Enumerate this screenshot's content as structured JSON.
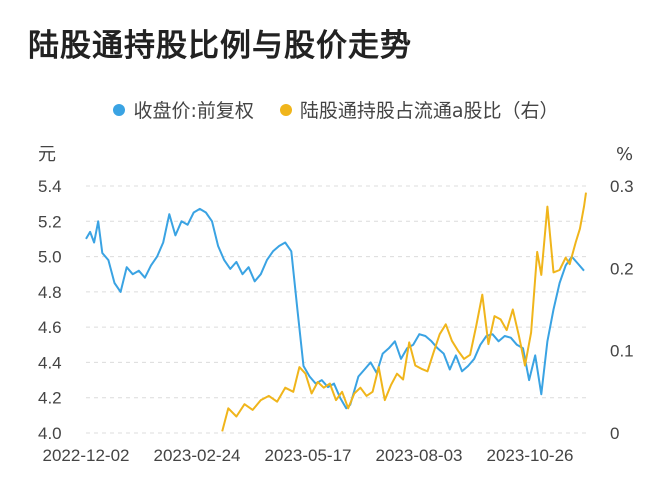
{
  "title": "陆股通持股比例与股价走势",
  "colors": {
    "price": "#3aa3e3",
    "holding": "#f0b51b",
    "grid": "#dcdcdc"
  },
  "chart_data": {
    "type": "line",
    "title": "陆股通持股比例与股价走势",
    "left_unit": "元",
    "right_unit": "%",
    "left_ylim": [
      4.0,
      5.4
    ],
    "right_ylim": [
      0,
      0.3
    ],
    "left_ticks": [
      "4.0",
      "4.2",
      "4.4",
      "4.6",
      "4.8",
      "5.0",
      "5.2",
      "5.4"
    ],
    "right_ticks": [
      "0",
      "0.1",
      "0.2",
      "0.3"
    ],
    "x_ticks": [
      "2022-12-02",
      "2023-02-24",
      "2023-05-17",
      "2023-08-03",
      "2023-10-26"
    ],
    "x_range": [
      0,
      246
    ],
    "series": [
      {
        "name": "收盘价:前复权",
        "axis": "left",
        "x": [
          0,
          2,
          4,
          6,
          8,
          11,
          14,
          17,
          20,
          23,
          26,
          29,
          32,
          35,
          38,
          41,
          44,
          47,
          50,
          53,
          56,
          59,
          62,
          65,
          68,
          71,
          74,
          77,
          80,
          83,
          86,
          89,
          92,
          95,
          98,
          101,
          104,
          107,
          110,
          113,
          116,
          119,
          122,
          125,
          128,
          130,
          131,
          134,
          137,
          140,
          143,
          146,
          149,
          152,
          155,
          158,
          161,
          164,
          167,
          170,
          173,
          176,
          179,
          182,
          185,
          188,
          191,
          194,
          197,
          200,
          203,
          206,
          209,
          212,
          215,
          218,
          221,
          224,
          227,
          230,
          233,
          236,
          239,
          242,
          245
        ],
        "values": [
          5.1,
          5.14,
          5.08,
          5.2,
          5.02,
          4.98,
          4.85,
          4.8,
          4.94,
          4.9,
          4.92,
          4.88,
          4.95,
          5.0,
          5.08,
          5.24,
          5.12,
          5.2,
          5.18,
          5.25,
          5.27,
          5.25,
          5.2,
          5.06,
          4.98,
          4.93,
          4.97,
          4.9,
          4.94,
          4.86,
          4.9,
          4.98,
          5.03,
          5.06,
          5.08,
          5.03,
          4.7,
          4.38,
          4.32,
          4.28,
          4.3,
          4.26,
          4.28,
          4.2,
          4.14,
          4.16,
          4.2,
          4.32,
          4.36,
          4.4,
          4.34,
          4.45,
          4.48,
          4.52,
          4.42,
          4.48,
          4.5,
          4.56,
          4.55,
          4.52,
          4.48,
          4.45,
          4.36,
          4.44,
          4.35,
          4.38,
          4.42,
          4.5,
          4.55,
          4.56,
          4.52,
          4.55,
          4.54,
          4.5,
          4.48,
          4.3,
          4.44,
          4.22,
          4.52,
          4.7,
          4.85,
          4.95,
          5.0,
          4.96,
          4.92
        ]
      },
      {
        "name": "陆股通持股占流通a股比（右）",
        "axis": "right",
        "x": [
          67,
          70,
          74,
          78,
          82,
          86,
          90,
          94,
          98,
          102,
          105,
          108,
          111,
          114,
          117,
          120,
          123,
          126,
          129,
          132,
          135,
          138,
          141,
          144,
          147,
          150,
          153,
          156,
          159,
          162,
          165,
          168,
          171,
          174,
          177,
          180,
          183,
          186,
          189,
          192,
          195,
          198,
          201,
          204,
          207,
          210,
          213,
          216,
          219,
          222,
          224,
          227,
          230,
          233,
          236,
          238,
          241,
          243,
          245,
          246
        ],
        "values": [
          0.002,
          0.03,
          0.02,
          0.035,
          0.028,
          0.04,
          0.045,
          0.038,
          0.055,
          0.05,
          0.08,
          0.072,
          0.048,
          0.062,
          0.055,
          0.06,
          0.04,
          0.05,
          0.03,
          0.048,
          0.055,
          0.045,
          0.05,
          0.08,
          0.04,
          0.058,
          0.072,
          0.065,
          0.11,
          0.082,
          0.078,
          0.075,
          0.098,
          0.12,
          0.132,
          0.112,
          0.1,
          0.09,
          0.095,
          0.13,
          0.168,
          0.108,
          0.142,
          0.138,
          0.125,
          0.15,
          0.118,
          0.082,
          0.122,
          0.22,
          0.192,
          0.275,
          0.195,
          0.198,
          0.213,
          0.205,
          0.232,
          0.248,
          0.275,
          0.292
        ]
      }
    ]
  }
}
